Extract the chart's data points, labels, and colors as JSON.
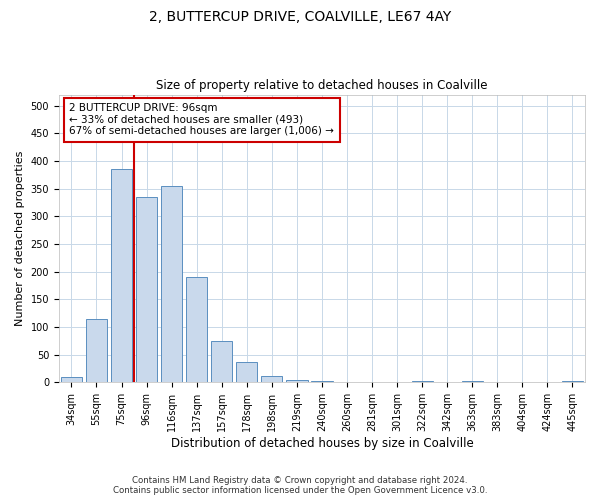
{
  "title": "2, BUTTERCUP DRIVE, COALVILLE, LE67 4AY",
  "subtitle": "Size of property relative to detached houses in Coalville",
  "xlabel": "Distribution of detached houses by size in Coalville",
  "ylabel": "Number of detached properties",
  "bin_labels": [
    "34sqm",
    "55sqm",
    "75sqm",
    "96sqm",
    "116sqm",
    "137sqm",
    "157sqm",
    "178sqm",
    "198sqm",
    "219sqm",
    "240sqm",
    "260sqm",
    "281sqm",
    "301sqm",
    "322sqm",
    "342sqm",
    "363sqm",
    "383sqm",
    "404sqm",
    "424sqm",
    "445sqm"
  ],
  "bar_values": [
    10,
    115,
    385,
    335,
    355,
    190,
    75,
    37,
    12,
    5,
    3,
    0,
    0,
    0,
    3,
    0,
    2,
    0,
    0,
    0,
    2
  ],
  "bar_color": "#c9d9ec",
  "bar_edge_color": "#5a8fc0",
  "property_line_bin": 3,
  "annotation_line1": "2 BUTTERCUP DRIVE: 96sqm",
  "annotation_line2": "← 33% of detached houses are smaller (493)",
  "annotation_line3": "67% of semi-detached houses are larger (1,006) →",
  "annotation_box_color": "#ffffff",
  "annotation_box_edge_color": "#cc0000",
  "line_color": "#cc0000",
  "ylim": [
    0,
    520
  ],
  "yticks": [
    0,
    50,
    100,
    150,
    200,
    250,
    300,
    350,
    400,
    450,
    500
  ],
  "footer_line1": "Contains HM Land Registry data © Crown copyright and database right 2024.",
  "footer_line2": "Contains public sector information licensed under the Open Government Licence v3.0.",
  "bg_color": "#ffffff",
  "grid_color": "#c8d8e8",
  "title_fontsize": 10,
  "subtitle_fontsize": 8.5,
  "ylabel_fontsize": 8,
  "xlabel_fontsize": 8.5,
  "tick_fontsize": 7,
  "annotation_fontsize": 7.5
}
